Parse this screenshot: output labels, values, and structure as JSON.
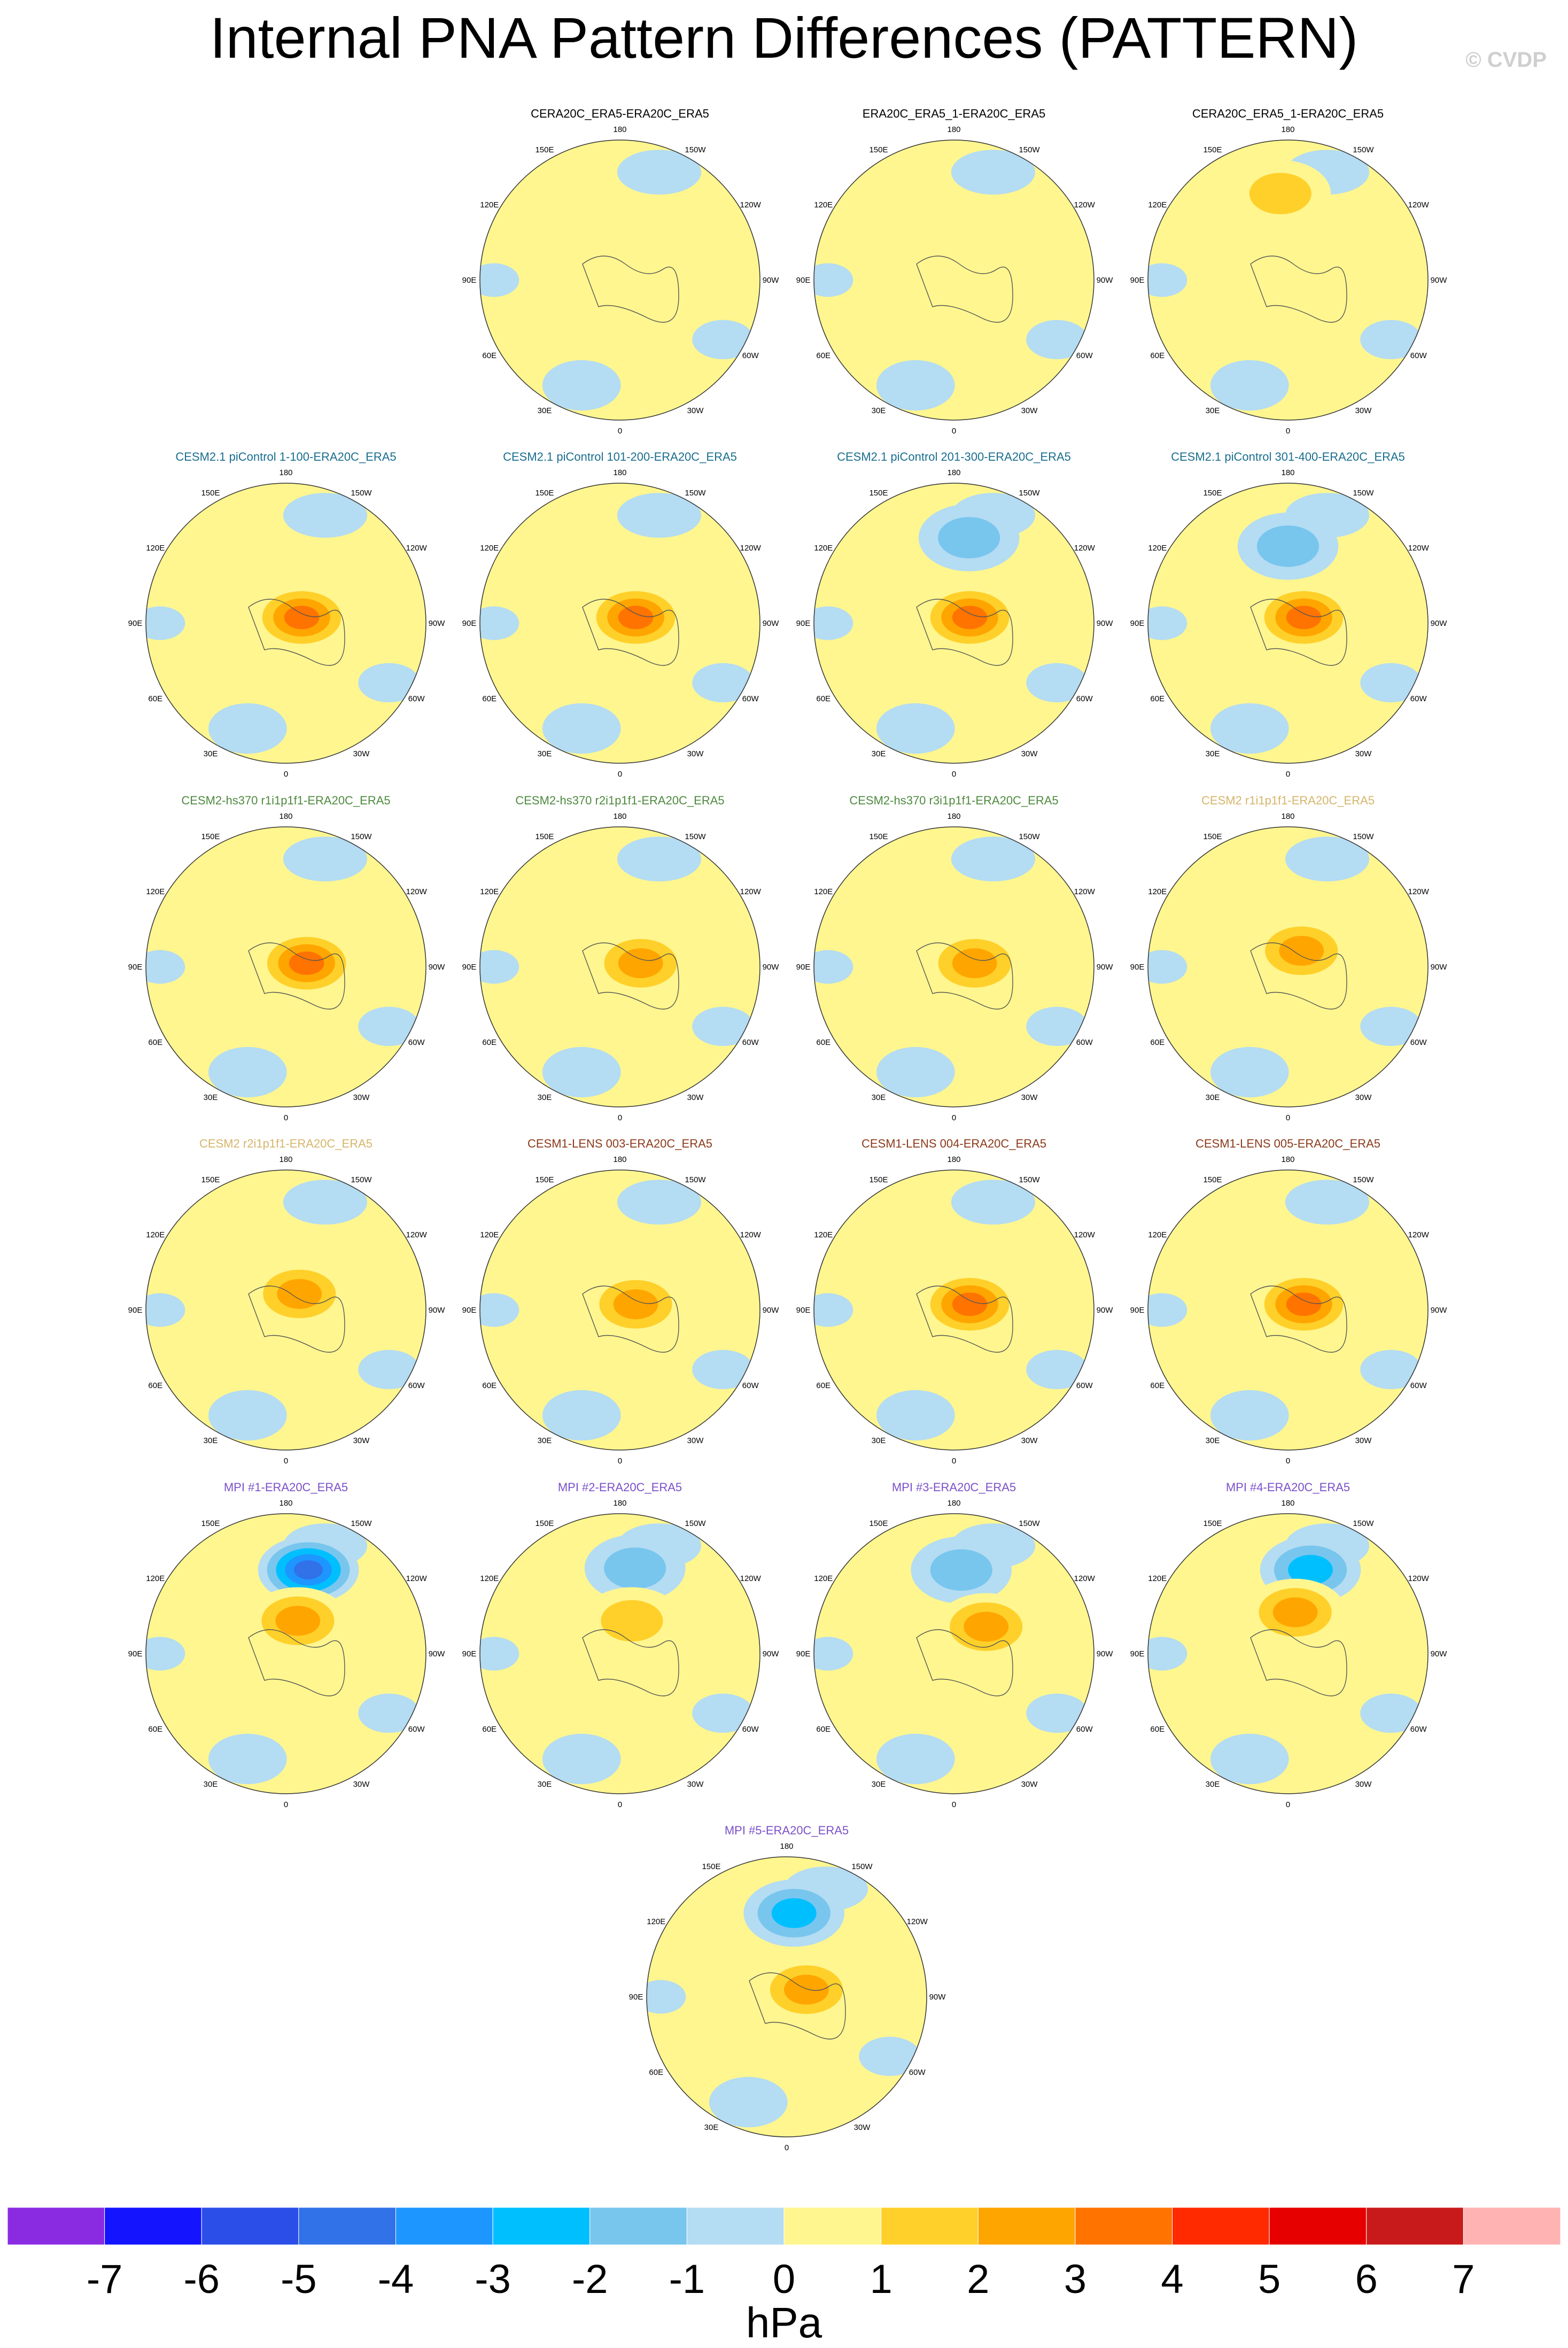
{
  "title": "Internal PNA Pattern Differences (PATTERN)",
  "watermark": "© CVDP",
  "units": "hPa",
  "lon_labels": [
    "180",
    "150E",
    "120E",
    "90E",
    "60E",
    "30E",
    "0",
    "30W",
    "60W",
    "90W",
    "120W",
    "150W"
  ],
  "chart_data": {
    "type": "heatmap",
    "projection": "north-polar-stereographic",
    "levels": [
      -7,
      -6,
      -5,
      -4,
      -3,
      -2,
      -1,
      0,
      1,
      2,
      3,
      4,
      5,
      6,
      7
    ],
    "colors": [
      "#8a2be2",
      "#1414ff",
      "#2b4de8",
      "#3172e8",
      "#1e96ff",
      "#00bfff",
      "#78c6ee",
      "#b4dcf2",
      "#fff68f",
      "#ffd02a",
      "#ffa500",
      "#ff7300",
      "#ff2a00",
      "#e60000",
      "#c81a1a",
      "#ffb3b3"
    ],
    "panels": [
      {
        "title": "CERA20C_ERA5-ERA20C_ERA5",
        "color": "#000000",
        "features": []
      },
      {
        "title": "ERA20C_ERA5_1-ERA20C_ERA5",
        "color": "#000000",
        "features": []
      },
      {
        "title": "CERA20C_ERA5_1-ERA20C_ERA5",
        "color": "#000000",
        "features": [
          {
            "lon": 175,
            "r": 0.62,
            "value": 1.5
          }
        ]
      },
      {
        "title": "CESM2.1 piControl 1-100-ERA20C_ERA5",
        "color": "#1a6e8e",
        "features": [
          {
            "lon": 250,
            "r": 0.12,
            "value": 3.5
          }
        ]
      },
      {
        "title": "CESM2.1 piControl 101-200-ERA20C_ERA5",
        "color": "#1a6e8e",
        "features": [
          {
            "lon": 250,
            "r": 0.12,
            "value": 3.5
          }
        ]
      },
      {
        "title": "CESM2.1 piControl 201-300-ERA20C_ERA5",
        "color": "#1a6e8e",
        "features": [
          {
            "lon": 190,
            "r": 0.62,
            "value": -1.5
          },
          {
            "lon": 250,
            "r": 0.12,
            "value": 3.5
          }
        ]
      },
      {
        "title": "CESM2.1 piControl 301-400-ERA20C_ERA5",
        "color": "#1a6e8e",
        "features": [
          {
            "lon": 180,
            "r": 0.55,
            "value": -1.5
          },
          {
            "lon": 250,
            "r": 0.12,
            "value": 3.5
          }
        ]
      },
      {
        "title": "CESM2-hs370 r1i1p1f1-ERA20C_ERA5",
        "color": "#4e8a3e",
        "features": [
          {
            "lon": 260,
            "r": 0.15,
            "value": 3.5
          }
        ]
      },
      {
        "title": "CESM2-hs370 r2i1p1f1-ERA20C_ERA5",
        "color": "#4e8a3e",
        "features": [
          {
            "lon": 260,
            "r": 0.15,
            "value": 2.5
          }
        ]
      },
      {
        "title": "CESM2-hs370 r3i1p1f1-ERA20C_ERA5",
        "color": "#4e8a3e",
        "features": [
          {
            "lon": 260,
            "r": 0.15,
            "value": 2.5
          }
        ]
      },
      {
        "title": "CESM2 r1i1p1f1-ERA20C_ERA5",
        "color": "#d6b56a",
        "features": [
          {
            "lon": 220,
            "r": 0.15,
            "value": 2.5
          }
        ]
      },
      {
        "title": "CESM2 r2i1p1f1-ERA20C_ERA5",
        "color": "#d6b56a",
        "features": [
          {
            "lon": 220,
            "r": 0.15,
            "value": 2.5
          }
        ]
      },
      {
        "title": "CESM1-LENS 003-ERA20C_ERA5",
        "color": "#8b3a1a",
        "features": [
          {
            "lon": 250,
            "r": 0.12,
            "value": 2.5
          }
        ]
      },
      {
        "title": "CESM1-LENS 004-ERA20C_ERA5",
        "color": "#8b3a1a",
        "features": [
          {
            "lon": 250,
            "r": 0.12,
            "value": 3.5
          }
        ]
      },
      {
        "title": "CESM1-LENS 005-ERA20C_ERA5",
        "color": "#8b3a1a",
        "features": [
          {
            "lon": 250,
            "r": 0.12,
            "value": 3.5
          }
        ]
      },
      {
        "title": "MPI #1-ERA20C_ERA5",
        "color": "#7b50c8",
        "features": [
          {
            "lon": 195,
            "r": 0.62,
            "value": -4.5
          },
          {
            "lon": 200,
            "r": 0.25,
            "value": 2.5
          }
        ]
      },
      {
        "title": "MPI #2-ERA20C_ERA5",
        "color": "#7b50c8",
        "features": [
          {
            "lon": 190,
            "r": 0.62,
            "value": -1.5
          },
          {
            "lon": 200,
            "r": 0.25,
            "value": 1.5
          }
        ]
      },
      {
        "title": "MPI #3-ERA20C_ERA5",
        "color": "#7b50c8",
        "features": [
          {
            "lon": 185,
            "r": 0.6,
            "value": -1.5
          },
          {
            "lon": 230,
            "r": 0.3,
            "value": 2.5
          }
        ]
      },
      {
        "title": "MPI #4-ERA20C_ERA5",
        "color": "#7b50c8",
        "features": [
          {
            "lon": 195,
            "r": 0.62,
            "value": -2.5
          },
          {
            "lon": 190,
            "r": 0.3,
            "value": 2.5
          }
        ]
      },
      {
        "title": "MPI #5-ERA20C_ERA5",
        "color": "#7b50c8",
        "features": [
          {
            "lon": 185,
            "r": 0.6,
            "value": -2.5
          },
          {
            "lon": 250,
            "r": 0.15,
            "value": 2.5
          }
        ]
      }
    ]
  }
}
